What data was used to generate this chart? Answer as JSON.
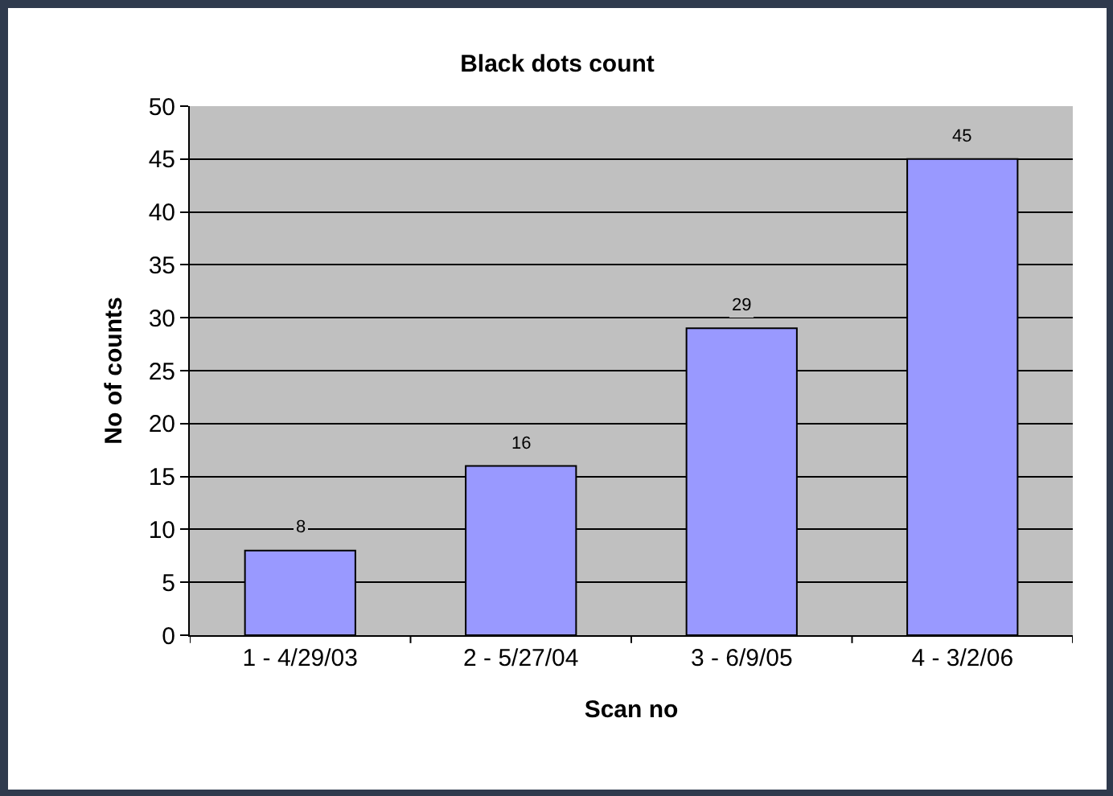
{
  "chart_data": {
    "type": "bar",
    "title": "Black dots count",
    "xlabel": "Scan no",
    "ylabel": "No of counts",
    "categories": [
      "1 - 4/29/03",
      "2 - 5/27/04",
      "3 - 6/9/05",
      "4 - 3/2/06"
    ],
    "values": [
      8,
      16,
      29,
      45
    ],
    "color": "#9999ff",
    "ylim": [
      0,
      50
    ],
    "yticks": [
      0,
      5,
      10,
      15,
      20,
      25,
      30,
      35,
      40,
      45,
      50
    ],
    "grid": "y",
    "data_labels": true
  }
}
